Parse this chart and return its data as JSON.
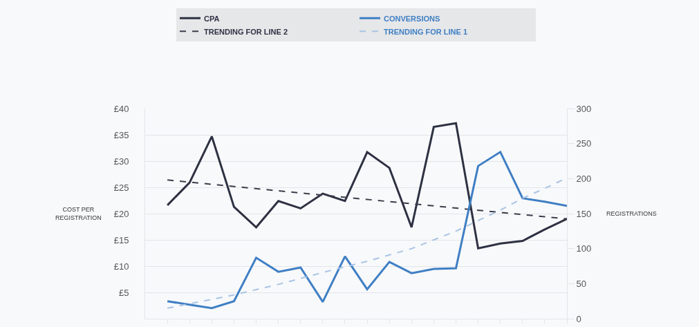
{
  "chart_data": {
    "type": "line",
    "ylabel": "COST PER\nREGISTRATION",
    "y2label": "REGISTRATIONS",
    "categories": [
      null,
      null,
      null,
      null,
      null,
      null,
      null,
      null,
      null,
      null,
      null,
      null,
      null,
      null,
      null,
      null,
      null,
      null,
      null
    ],
    "series": [
      {
        "name": "CPA",
        "color": "#2d3142",
        "values": [
          21.6,
          25.9,
          34.7,
          21.3,
          17.4,
          22.4,
          21.0,
          23.8,
          22.4,
          31.7,
          28.7,
          17.4,
          36.5,
          37.2,
          13.4,
          14.3,
          14.8,
          17.0,
          19.0
        ]
      },
      {
        "name": "CONVERSIONS",
        "color": "#3f7fc4",
        "axis": "y2",
        "values": [
          25,
          20,
          15,
          25,
          87,
          67,
          73,
          24,
          89,
          42,
          81,
          65,
          71,
          72,
          218,
          238,
          172,
          167,
          161
        ]
      },
      {
        "name": "TRENDING FOR LINE 2",
        "color": "#3a3d4a",
        "line_style": "dashed",
        "values": [
          26.4,
          null,
          null,
          null,
          null,
          null,
          null,
          null,
          null,
          null,
          null,
          null,
          null,
          null,
          null,
          null,
          null,
          null,
          19.0
        ]
      },
      {
        "name": "TRENDING FOR LINE 1",
        "color": "#a9c4e4",
        "line_style": "dashed",
        "axis": "y2",
        "values": [
          15,
          null,
          null,
          34,
          null,
          49,
          null,
          66,
          null,
          82,
          null,
          100,
          null,
          125,
          null,
          155,
          172,
          186,
          201
        ]
      }
    ],
    "ylim": [
      0,
      40
    ],
    "yticks": [
      {
        "value": 5,
        "label": "£5"
      },
      {
        "value": 10,
        "label": "£10"
      },
      {
        "value": 15,
        "label": "£15"
      },
      {
        "value": 20,
        "label": "£20"
      },
      {
        "value": 25,
        "label": "£25"
      },
      {
        "value": 30,
        "label": "£30"
      },
      {
        "value": 35,
        "label": "£35"
      },
      {
        "value": 40,
        "label": "£40"
      }
    ],
    "y2lim": [
      0,
      300
    ],
    "y2ticks": [
      0,
      50,
      100,
      150,
      200,
      250,
      300
    ],
    "grid": "y",
    "legend": "top",
    "marker": "none",
    "line_style": "solid"
  }
}
